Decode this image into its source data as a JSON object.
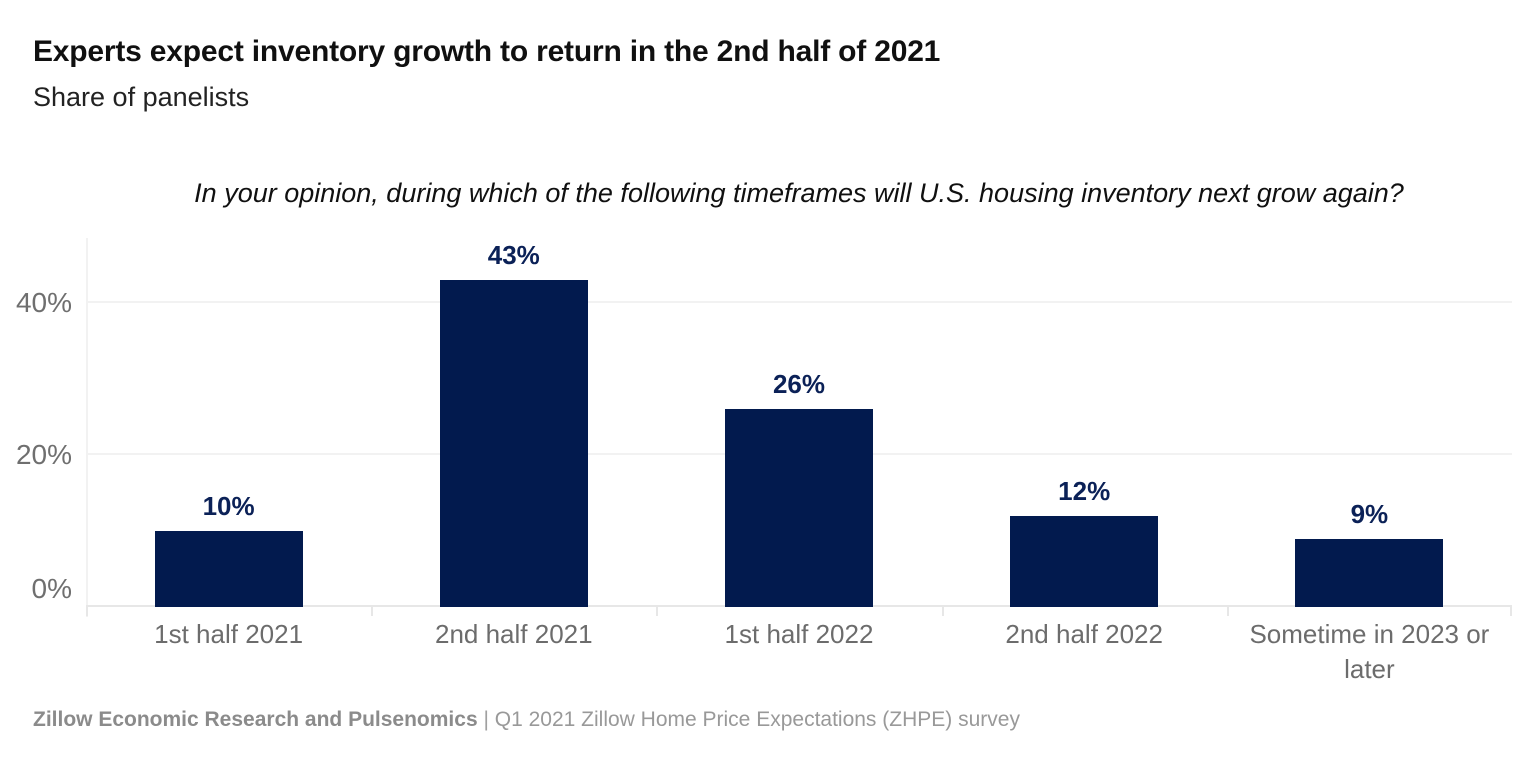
{
  "header": {
    "title": "Experts expect inventory growth to return in the 2nd half of 2021",
    "subtitle": "Share of panelists"
  },
  "chart_data": {
    "type": "bar",
    "title": "Experts expect inventory growth to return in the 2nd half of 2021",
    "subtitle": "Share of panelists",
    "question": "In your opinion, during which of the following timeframes will U.S. housing inventory next grow again?",
    "categories": [
      "1st half 2021",
      "2nd half 2021",
      "1st half 2022",
      "2nd half 2022",
      "Sometime in 2023 or later"
    ],
    "values": [
      10,
      43,
      26,
      12,
      9
    ],
    "value_labels": [
      "10%",
      "43%",
      "26%",
      "12%",
      "9%"
    ],
    "yticks": [
      {
        "value": 0,
        "label": "0%"
      },
      {
        "value": 20,
        "label": "20%"
      },
      {
        "value": 40,
        "label": "40%"
      }
    ],
    "ylim": [
      0,
      48
    ],
    "xlabel": "",
    "ylabel": "Share of panelists",
    "grid": "horizontal",
    "legend": "none",
    "bar_color": "#021a4e",
    "value_label_color": "#0b2157",
    "axis_text_color": "#6c6c6c"
  },
  "footer": {
    "source_bold": "Zillow Economic Research and Pulsenomics",
    "separator": " | ",
    "source_rest": "Q1 2021 Zillow Home Price Expectations (ZHPE) survey"
  }
}
